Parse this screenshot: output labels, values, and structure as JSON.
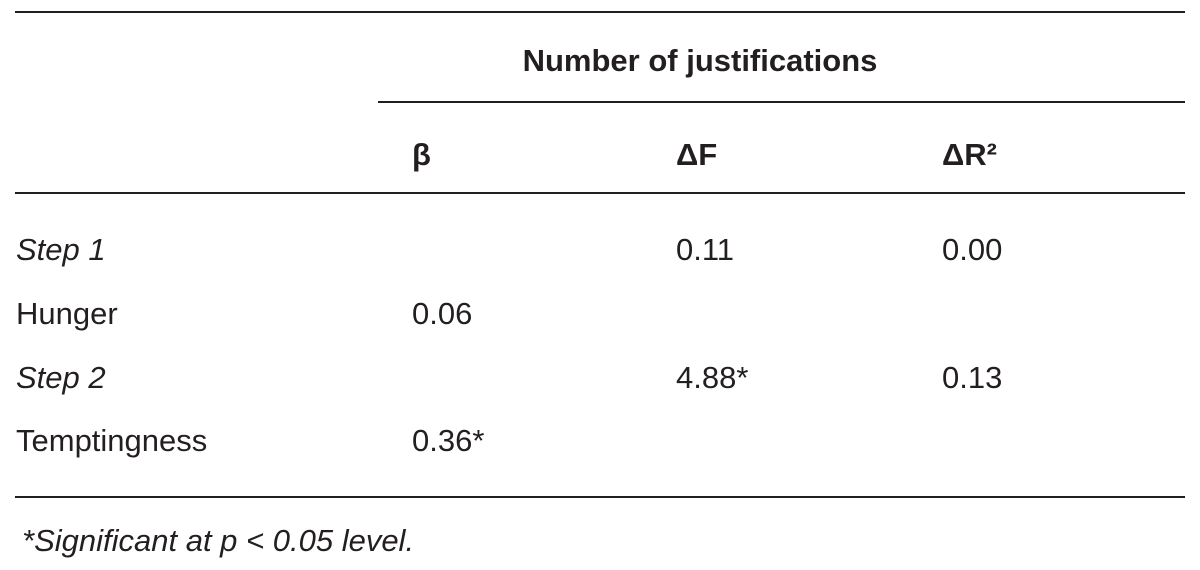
{
  "table": {
    "group_header": "Number of justifications",
    "columns": [
      "β",
      "ΔF",
      "ΔR²"
    ],
    "rows": [
      [
        "Step 1",
        null,
        "0.11",
        "0.00"
      ],
      [
        "Hunger",
        "0.06",
        null,
        null
      ],
      [
        "Step 2",
        null,
        "4.88*",
        "0.13"
      ],
      [
        "Temptingness",
        "0.36*",
        null,
        null
      ]
    ],
    "italic_rows": [
      0,
      2
    ],
    "footnote": "*Significant at p < 0.05 level."
  }
}
